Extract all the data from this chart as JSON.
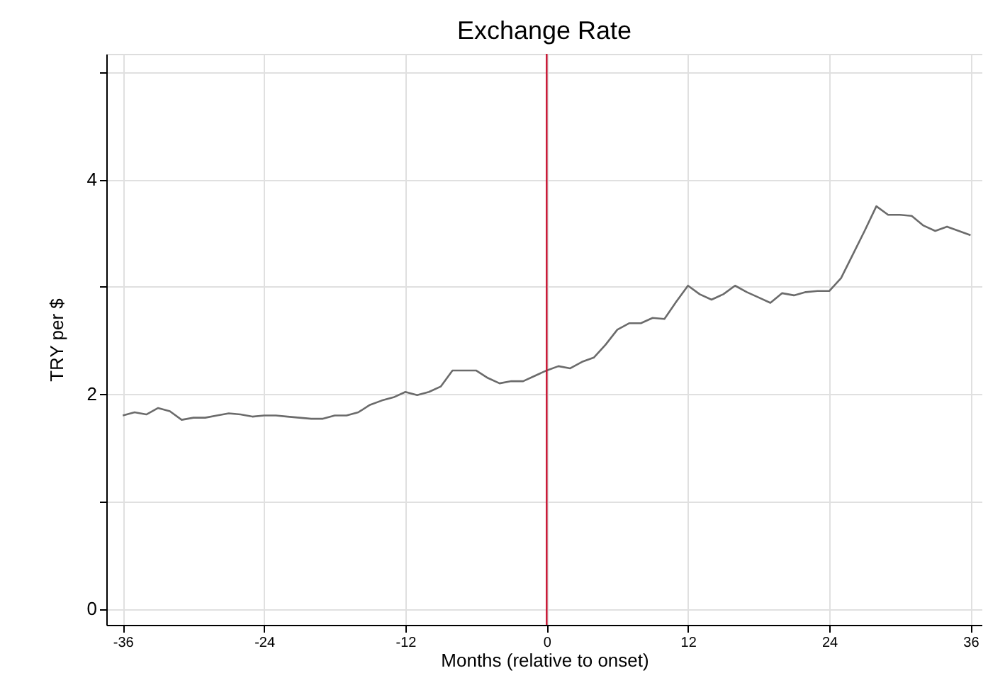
{
  "chart_data": {
    "type": "line",
    "title": "Exchange Rate",
    "xlabel": "Months (relative to onset)",
    "ylabel": "TRY per $",
    "x": [
      -36,
      -35,
      -34,
      -33,
      -32,
      -31,
      -30,
      -29,
      -28,
      -27,
      -26,
      -25,
      -24,
      -23,
      -22,
      -21,
      -20,
      -19,
      -18,
      -17,
      -16,
      -15,
      -14,
      -13,
      -12,
      -11,
      -10,
      -9,
      -8,
      -7,
      -6,
      -5,
      -4,
      -3,
      -2,
      -1,
      0,
      1,
      2,
      3,
      4,
      5,
      6,
      7,
      8,
      9,
      10,
      11,
      12,
      13,
      14,
      15,
      16,
      17,
      18,
      19,
      20,
      21,
      22,
      23,
      24,
      25,
      26,
      27,
      28,
      29,
      30,
      31,
      32,
      33,
      34,
      35,
      36
    ],
    "series": [
      {
        "color": "#6b6b6b",
        "values": [
          1.8,
          1.83,
          1.81,
          1.87,
          1.84,
          1.76,
          1.78,
          1.78,
          1.8,
          1.82,
          1.81,
          1.79,
          1.8,
          1.8,
          1.79,
          1.78,
          1.77,
          1.77,
          1.8,
          1.8,
          1.83,
          1.9,
          1.94,
          1.97,
          2.02,
          1.99,
          2.02,
          2.07,
          2.22,
          2.22,
          2.22,
          2.15,
          2.1,
          2.12,
          2.12,
          2.17,
          2.22,
          2.26,
          2.24,
          2.3,
          2.34,
          2.46,
          2.6,
          2.66,
          2.66,
          2.71,
          2.7,
          2.86,
          3.01,
          2.93,
          2.88,
          2.93,
          3.01,
          2.95,
          2.9,
          2.85,
          2.94,
          2.92,
          2.95,
          2.96,
          2.96,
          3.08,
          3.3,
          3.52,
          3.75,
          3.67,
          3.67,
          3.66,
          3.57,
          3.52,
          3.56,
          3.52,
          3.48
        ]
      }
    ],
    "xlim": [
      -37.4,
      37
    ],
    "ylim": [
      -0.15,
      5.17
    ],
    "xticks": [
      -36,
      -24,
      -12,
      0,
      12,
      24,
      36
    ],
    "yticks": [
      0,
      {
        "value": 1,
        "label": null
      },
      2,
      {
        "value": 3,
        "label": null
      },
      4,
      {
        "value": 5,
        "label": null
      }
    ],
    "grid": true,
    "marker": "none",
    "line_style": "solid",
    "ref_lines": [
      {
        "axis": "x",
        "value": 0,
        "color": "#c8102e",
        "line_style": "solid"
      }
    ]
  }
}
